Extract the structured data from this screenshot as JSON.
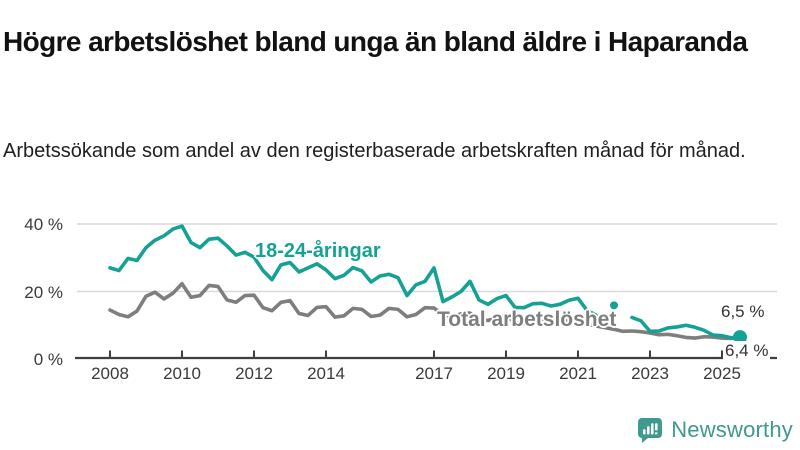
{
  "chart_data": {
    "type": "line",
    "title": "Högre arbetslöshet bland unga än bland äldre i Haparanda",
    "subtitle": "Arbetssökande som andel av den registerbaserade arbetskraften månad för månad.",
    "x_start": 2008,
    "x_step": 0.25,
    "xlim": [
      2007.1,
      2026.5
    ],
    "ylim": [
      0,
      44
    ],
    "grid": "horizontal",
    "x_ticks": [
      "2008",
      "2010",
      "2012",
      "2014",
      "2017",
      "2019",
      "2021",
      "2023",
      "2025"
    ],
    "x_tick_years": [
      2008,
      2010,
      2012,
      2014,
      2017,
      2019,
      2021,
      2023,
      2025
    ],
    "y_ticks": [
      0,
      20,
      40
    ],
    "y_tick_labels": [
      "0 %",
      "20 %",
      "40 %"
    ],
    "series": [
      {
        "name": "Total arbetslöshet",
        "color": "#7e7e7e",
        "end_label": "6,4 %",
        "end_dot": false,
        "values": [
          14.5,
          13.2,
          12.5,
          14.2,
          18.6,
          19.8,
          17.8,
          19.5,
          22.3,
          18.3,
          18.8,
          21.8,
          21.5,
          17.5,
          16.8,
          18.8,
          18.9,
          15.2,
          14.3,
          16.8,
          17.3,
          13.5,
          12.9,
          15.3,
          15.5,
          12.4,
          12.8,
          15.0,
          14.7,
          12.6,
          13.0,
          15.0,
          14.7,
          12.5,
          13.2,
          15.2,
          15.1,
          13.2,
          12.5,
          13.4,
          13.6,
          11.9,
          11.4,
          12.4,
          12.7,
          10.9,
          10.5,
          11.4,
          11.9,
          11.4,
          11.0,
          11.4,
          11.2,
          10.4,
          9.8,
          9.3,
          8.8,
          8.2,
          8.3,
          8.1,
          7.7,
          7.2,
          7.3,
          6.9,
          6.4,
          6.2,
          6.6,
          6.5,
          6.2,
          6.1,
          6.4
        ]
      },
      {
        "name": "18-24-åringar",
        "color": "#16a195",
        "end_label": "6,5 %",
        "end_dot": true,
        "values": [
          27.0,
          26.2,
          29.8,
          29.2,
          33.0,
          35.2,
          36.5,
          38.5,
          39.4,
          34.5,
          33.0,
          35.5,
          35.8,
          33.5,
          30.8,
          31.6,
          30.2,
          26.2,
          23.5,
          27.9,
          28.6,
          25.8,
          27.0,
          28.2,
          26.4,
          23.8,
          24.8,
          27.1,
          26.1,
          22.8,
          24.6,
          25.1,
          24.1,
          18.8,
          22.0,
          23.0,
          27.0,
          17.0,
          18.4,
          20.0,
          23.0,
          17.5,
          16.2,
          17.9,
          18.8,
          15.3,
          15.2,
          16.4,
          16.5,
          15.7,
          16.2,
          17.4,
          18.0,
          14.4,
          13.0,
          null,
          15.9,
          null,
          12.3,
          11.3,
          8.2,
          8.3,
          9.2,
          9.5,
          10.0,
          9.4,
          8.5,
          7.1,
          6.9,
          6.3,
          6.5
        ]
      }
    ],
    "colors": {
      "grid": "#d9d9d9",
      "axis": "#3f3f3f",
      "accent_teal": "#16a195",
      "line_gray": "#7e7e7e"
    }
  },
  "branding": {
    "logo_text": "Newsworthy",
    "logo_icon": "bar-chart-speech-bubble-icon",
    "logo_color": "#3f998e"
  }
}
